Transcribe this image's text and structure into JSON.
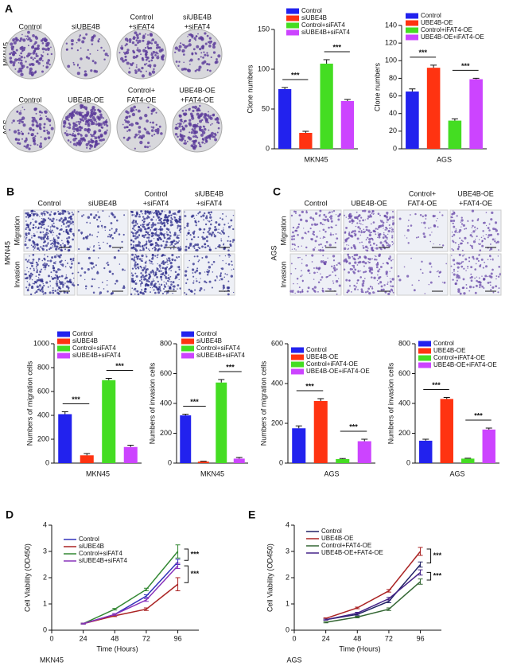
{
  "image_panels": {
    "A": {
      "letter": "A",
      "rows": [
        {
          "label": "MKN45",
          "columns": [
            [
              "Control"
            ],
            [
              "siUBE4B"
            ],
            [
              "Control",
              "+siFAT4"
            ],
            [
              "siUBE4B",
              "+siFAT4"
            ]
          ]
        },
        {
          "label": "AGS",
          "columns": [
            [
              "Control"
            ],
            [
              "UBE4B-OE"
            ],
            [
              "Control+",
              "FAT4-OE"
            ],
            [
              "UBE4B-OE",
              "+FAT4-OE"
            ]
          ]
        }
      ]
    },
    "B": {
      "letter": "B",
      "side": "MKN45",
      "rows": [
        "Migration",
        "Invasion"
      ],
      "columns": [
        [
          "Control"
        ],
        [
          "siUBE4B"
        ],
        [
          "Control",
          "+siFAT4"
        ],
        [
          "siUBE4B",
          "+siFAT4"
        ]
      ]
    },
    "C": {
      "letter": "C",
      "side": "AGS",
      "rows": [
        "Migration",
        "Invasion"
      ],
      "columns": [
        [
          "Control"
        ],
        [
          "UBE4B-OE"
        ],
        [
          "Control+",
          "FAT4-OE"
        ],
        [
          "UBE4B-OE",
          "+FAT4-OE"
        ]
      ]
    }
  },
  "chart_data": [
    {
      "type": "bar",
      "ylabel": "Clone numbers",
      "xlabel": "MKN45",
      "categories": [
        "Control",
        "siUBE4B",
        "Control+siFAT4",
        "siUBE4B+siFAT4"
      ],
      "values": [
        75,
        20,
        107,
        60
      ],
      "errors": [
        2,
        2,
        5,
        2
      ],
      "colors": [
        "#2222ee",
        "#ff3311",
        "#44dd22",
        "#cc44ff"
      ],
      "ylim": [
        0,
        150
      ],
      "yticks": [
        0,
        50,
        100,
        150
      ],
      "annotations": [
        "***",
        "***"
      ]
    },
    {
      "type": "bar",
      "ylabel": "Clone numbers",
      "xlabel": "AGS",
      "categories": [
        "Control",
        "UBE4B-OE",
        "Control+iFAT4-OE",
        "UBE4B-OE+iFAT4-OE"
      ],
      "values": [
        65,
        92,
        32,
        79
      ],
      "errors": [
        3,
        3,
        2,
        1
      ],
      "colors": [
        "#2222ee",
        "#ff3311",
        "#44dd22",
        "#cc44ff"
      ],
      "ylim": [
        0,
        140
      ],
      "yticks": [
        0,
        20,
        40,
        60,
        80,
        100,
        120,
        140
      ],
      "annotations": [
        "***",
        "***"
      ]
    },
    {
      "type": "bar",
      "ylabel": "Numbers of migration cells",
      "xlabel": "MKN45",
      "categories": [
        "Control",
        "siUBE4B",
        "Control+siFAT4",
        "siUBE4B+siFAT4"
      ],
      "values": [
        410,
        65,
        695,
        135
      ],
      "errors": [
        20,
        15,
        15,
        15
      ],
      "colors": [
        "#2222ee",
        "#ff3311",
        "#44dd22",
        "#cc44ff"
      ],
      "ylim": [
        0,
        1000
      ],
      "yticks": [
        0,
        200,
        400,
        600,
        800,
        1000
      ],
      "annotations": [
        "***",
        "***"
      ]
    },
    {
      "type": "bar",
      "ylabel": "Numbers of invasion cells",
      "xlabel": "MKN45",
      "categories": [
        "Control",
        "siUBE4B",
        "Control+siFAT4",
        "siUBE4B+siFAT4"
      ],
      "values": [
        320,
        10,
        540,
        30
      ],
      "errors": [
        8,
        3,
        20,
        8
      ],
      "colors": [
        "#2222ee",
        "#ff3311",
        "#44dd22",
        "#cc44ff"
      ],
      "ylim": [
        0,
        800
      ],
      "yticks": [
        0,
        200,
        400,
        600,
        800
      ],
      "annotations": [
        "***",
        "***"
      ]
    },
    {
      "type": "bar",
      "ylabel": "Numbers of migration cells",
      "xlabel": "AGS",
      "categories": [
        "Control",
        "UBE4B-OE",
        "Control+iFAT4-OE",
        "UBE4B-OE+iFAT4-OE"
      ],
      "values": [
        175,
        312,
        20,
        110
      ],
      "errors": [
        12,
        12,
        3,
        10
      ],
      "colors": [
        "#2222ee",
        "#ff3311",
        "#44dd22",
        "#cc44ff"
      ],
      "ylim": [
        0,
        600
      ],
      "yticks": [
        0,
        200,
        400,
        600
      ],
      "annotations": [
        "***",
        "***"
      ]
    },
    {
      "type": "bar",
      "ylabel": "Numbers of invasion cells",
      "xlabel": "AGS",
      "categories": [
        "Control",
        "UBE4B-OE",
        "Control+iFAT4-OE",
        "UBE4B-OE+iFAT4-OE"
      ],
      "values": [
        150,
        430,
        30,
        225
      ],
      "errors": [
        10,
        10,
        3,
        10
      ],
      "colors": [
        "#2222ee",
        "#ff3311",
        "#44dd22",
        "#cc44ff"
      ],
      "ylim": [
        0,
        800
      ],
      "yticks": [
        0,
        200,
        400,
        600,
        800
      ],
      "annotations": [
        "***",
        "***"
      ]
    },
    {
      "type": "line",
      "panel_label": "D",
      "ylabel": "Cell Viability (OD450)",
      "xlabel": "Time (Hours)",
      "caption": "MKN45",
      "x": [
        24,
        48,
        72,
        96
      ],
      "xlim": [
        0,
        112
      ],
      "xticks": [
        0,
        24,
        48,
        72,
        96
      ],
      "ylim": [
        0,
        4
      ],
      "yticks": [
        0,
        1,
        2,
        3,
        4
      ],
      "annotations": [
        "***",
        "***"
      ],
      "series": [
        {
          "name": "Control",
          "color": "#3333bb",
          "values": [
            0.25,
            0.6,
            1.3,
            2.6
          ],
          "errors": [
            0.02,
            0.03,
            0.05,
            0.1
          ]
        },
        {
          "name": "siUBE4B",
          "color": "#aa2222",
          "values": [
            0.25,
            0.55,
            0.8,
            1.75
          ],
          "errors": [
            0.02,
            0.03,
            0.05,
            0.25
          ]
        },
        {
          "name": "Control+siFAT4",
          "color": "#338833",
          "values": [
            0.25,
            0.8,
            1.55,
            3.0
          ],
          "errors": [
            0.02,
            0.03,
            0.05,
            0.25
          ]
        },
        {
          "name": "siUBE4B+siFAT4",
          "color": "#8833bb",
          "values": [
            0.25,
            0.6,
            1.15,
            2.45
          ],
          "errors": [
            0.02,
            0.03,
            0.05,
            0.1
          ]
        }
      ]
    },
    {
      "type": "line",
      "panel_label": "E",
      "ylabel": "Cell Viability (OD450)",
      "xlabel": "Time (Hours)",
      "caption": "AGS",
      "x": [
        24,
        48,
        72,
        96
      ],
      "xlim": [
        0,
        112
      ],
      "xticks": [
        0,
        24,
        48,
        72,
        96
      ],
      "ylim": [
        0,
        4
      ],
      "yticks": [
        0,
        1,
        2,
        3,
        4
      ],
      "annotations": [
        "***",
        "***"
      ],
      "series": [
        {
          "name": "Control",
          "color": "#222266",
          "values": [
            0.4,
            0.6,
            1.1,
            2.5
          ],
          "errors": [
            0.02,
            0.03,
            0.05,
            0.1
          ]
        },
        {
          "name": "UBE4B-OE",
          "color": "#aa2222",
          "values": [
            0.45,
            0.85,
            1.5,
            3.0
          ],
          "errors": [
            0.02,
            0.03,
            0.05,
            0.15
          ]
        },
        {
          "name": "Control+FAT4-OE",
          "color": "#336633",
          "values": [
            0.3,
            0.5,
            0.8,
            1.85
          ],
          "errors": [
            0.02,
            0.03,
            0.05,
            0.1
          ]
        },
        {
          "name": "UBE4B-OE+FAT4-OE",
          "color": "#442288",
          "values": [
            0.4,
            0.65,
            1.2,
            2.2
          ],
          "errors": [
            0.02,
            0.03,
            0.05,
            0.1
          ]
        }
      ]
    }
  ]
}
